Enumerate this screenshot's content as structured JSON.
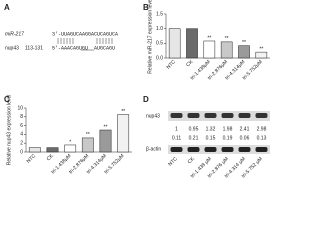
{
  "panel_labels": [
    "A",
    "B",
    "C",
    "D"
  ],
  "sequence": {
    "mirna_name": "miR-217",
    "mirna_seq": "3'-UUAGUCAAGGACUCAGUCA",
    "target_name": "nup43",
    "target_pos": "113-131",
    "target_seq": "5'-AAACAGUGU",
    "target_seq_end": "AUGCAGU"
  },
  "chart_data": [
    {
      "type": "bar",
      "ylabel": "Relative miR-217 expression level",
      "categories": [
        "NTC",
        "CK",
        "tri-1.438μM",
        "tri-2.876μM",
        "tri-4.314μM",
        "tri-5.752μM"
      ],
      "values": [
        1.0,
        1.0,
        0.58,
        0.55,
        0.42,
        0.2
      ],
      "colors": [
        "#e6e6e6",
        "#6a6a6a",
        "#ffffff",
        "#c8c8c8",
        "#9a9a9a",
        "#f2f2f2"
      ],
      "significance": [
        null,
        null,
        "**",
        "**",
        "**",
        "**"
      ],
      "ylim": [
        0,
        1.5
      ],
      "yticks": [
        {
          "value": 0,
          "label": "0.0"
        },
        0.5,
        {
          "value": 1,
          "label": "1.0"
        },
        1.5
      ]
    },
    {
      "type": "bar",
      "ylabel": "Relative nup43 expression level",
      "categories": [
        "NTC",
        "CK",
        "tri-1.438μM",
        "tri-2.876μM",
        "tri-4.314μM",
        "tri-5.752μM"
      ],
      "values": [
        1.0,
        1.0,
        1.6,
        3.2,
        5.0,
        8.5
      ],
      "colors": [
        "#e6e6e6",
        "#6a6a6a",
        "#ffffff",
        "#c8c8c8",
        "#9a9a9a",
        "#f2f2f2"
      ],
      "significance": [
        null,
        null,
        "*",
        "**",
        "**",
        "**"
      ],
      "ylim": [
        0,
        10
      ],
      "yticks": [
        0,
        2,
        4,
        6,
        8,
        10
      ]
    }
  ],
  "blot": {
    "protein": "nup43",
    "control": "β-actin",
    "ratios": [
      1,
      0.95,
      1.32,
      1.98,
      2.41,
      2.98
    ],
    "ratios2": [
      0.11,
      0.21,
      0.15,
      0.19,
      0.06,
      0.13
    ],
    "lanes": [
      "NTC",
      "CK",
      "tri-1.438 μM",
      "tri-2.876 μM",
      "tri-4.314 μM",
      "tri-5.752 μM"
    ]
  }
}
